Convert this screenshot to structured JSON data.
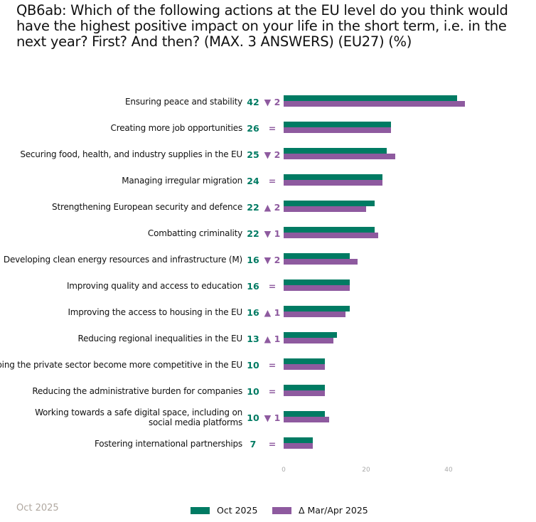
{
  "title": "QB6ab: Which of the following actions at the EU level do you think would have the highest positive impact on your life in the short term, i.e. in the next year? First? And then? (MAX. 3 ANSWERS) (EU27) (%)",
  "footer": "Oct 2025",
  "colors": {
    "current": "#007b63",
    "previous": "#8e5a9f"
  },
  "chart_data": {
    "type": "bar",
    "orientation": "horizontal",
    "categories": [
      "Ensuring peace and stability",
      "Creating more job opportunities",
      "Securing food, health, and industry supplies in the EU",
      "Managing irregular migration",
      "Strengthening European security and defence",
      "Combatting criminality",
      "Developing clean energy resources and infrastructure (M)",
      "Improving quality and access to education",
      "Improving the access to housing in the EU",
      "Reducing regional inequalities in the EU",
      "Helping the private sector become more competitive in the EU",
      "Reducing the administrative burden for companies",
      "Working towards a safe digital space, including on social media platforms",
      "Fostering international partnerships"
    ],
    "series": [
      {
        "name": "Oct 2025",
        "values": [
          42,
          26,
          25,
          24,
          22,
          22,
          16,
          16,
          16,
          13,
          10,
          10,
          10,
          7
        ]
      },
      {
        "name": "Δ Mar/Apr 2025",
        "values": [
          44,
          26,
          27,
          24,
          20,
          23,
          18,
          16,
          15,
          12,
          10,
          10,
          11,
          7
        ]
      }
    ],
    "value_labels": [
      "42",
      "26",
      "25",
      "24",
      "22",
      "22",
      "16",
      "16",
      "16",
      "13",
      "10",
      "10",
      "10",
      "7"
    ],
    "delta_labels": [
      "▼ 2",
      "=",
      "▼ 2",
      "=",
      "▲ 2",
      "▼ 1",
      "▼ 2",
      "=",
      "▲ 1",
      "▲ 1",
      "=",
      "=",
      "▼ 1",
      "="
    ],
    "xticks": [
      "0",
      "20",
      "40"
    ],
    "xlim": [
      0,
      50
    ],
    "legend_position": "bottom"
  }
}
